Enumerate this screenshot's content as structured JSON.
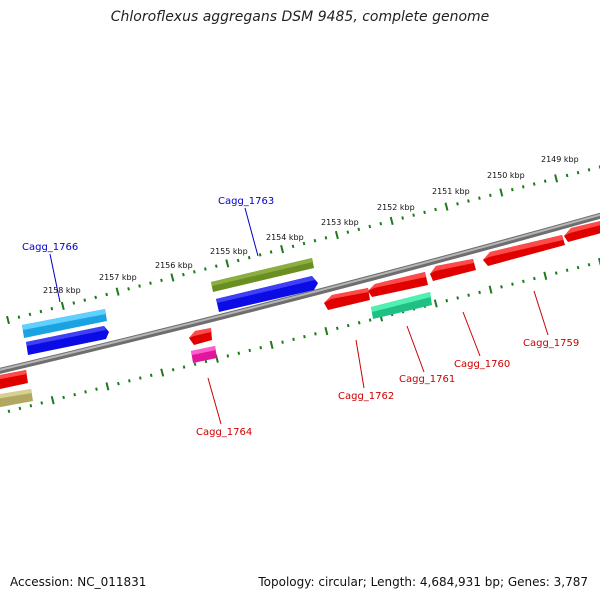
{
  "title": "Chloroflexus aggregans DSM 9485, complete genome",
  "footer": {
    "accession_label": "Accession: NC_011831",
    "summary_label": "Topology: circular; Length: 4,684,931 bp; Genes: 3,787"
  },
  "colors": {
    "backbone": "#8a8a8a",
    "tick": "#1d7a1d",
    "forward_label": "#0000cc",
    "reverse_label": "#cc0000",
    "label_line_forward": "#0000cc",
    "label_line_reverse": "#cc0000"
  },
  "position_labels": [
    "2149 kbp",
    "2150 kbp",
    "2151 kbp",
    "2152 kbp",
    "2153 kbp",
    "2154 kbp",
    "2155 kbp",
    "2156 kbp",
    "2157 kbp",
    "2158 kbp"
  ],
  "gene_labels": [
    {
      "id": "Cagg_1763",
      "strand": "forward"
    },
    {
      "id": "Cagg_1766",
      "strand": "forward"
    },
    {
      "id": "Cagg_1764",
      "strand": "reverse"
    },
    {
      "id": "Cagg_1762",
      "strand": "reverse"
    },
    {
      "id": "Cagg_1761",
      "strand": "reverse"
    },
    {
      "id": "Cagg_1760",
      "strand": "reverse"
    },
    {
      "id": "Cagg_1759",
      "strand": "reverse"
    }
  ]
}
